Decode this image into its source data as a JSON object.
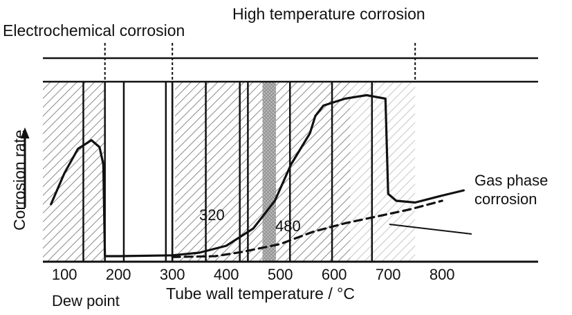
{
  "chart_data": {
    "type": "line",
    "title": "",
    "xlabel": "Tube wall temperature / °C",
    "ylabel": "Corrosion rate",
    "xlim": [
      60,
      840
    ],
    "ylim": [
      0,
      1
    ],
    "x_ticks": [
      100,
      200,
      300,
      400,
      500,
      600,
      700,
      800
    ],
    "x_tick_labels": [
      "100",
      "200",
      "300",
      "400",
      "500",
      "600",
      "700",
      "800"
    ],
    "regions": [
      {
        "label": "Electrochemical corrosion",
        "x_range": [
          60,
          175
        ]
      },
      {
        "label": "High temperature corrosion",
        "x_range": [
          345,
          750
        ]
      }
    ],
    "shaded_bands": [
      {
        "x_range": [
          60,
          175
        ],
        "pattern": "hatch"
      },
      {
        "x_range": [
          305,
          630
        ],
        "pattern": "hatch"
      },
      {
        "x_range": [
          467,
          492
        ],
        "pattern": "crosshatch"
      },
      {
        "x_range": [
          630,
          750
        ],
        "pattern": "hatch-light"
      }
    ],
    "vertical_lines": [
      135,
      210,
      288,
      300,
      362,
      425,
      440,
      518,
      596,
      670
    ],
    "dashed_verticals": [
      175,
      300,
      750
    ],
    "annotations": [
      {
        "text": "Dew point",
        "x": 175
      },
      {
        "text": "320",
        "x": 320
      },
      {
        "text": "480",
        "x": 480
      },
      {
        "text": "Gas phase corrosion",
        "x": 760
      }
    ],
    "series": [
      {
        "style": "solid",
        "points": [
          [
            75,
            0.32
          ],
          [
            100,
            0.5
          ],
          [
            125,
            0.64
          ],
          [
            150,
            0.69
          ],
          [
            165,
            0.65
          ],
          [
            172,
            0.55
          ],
          [
            175,
            0.02
          ],
          [
            200,
            0.02
          ],
          [
            300,
            0.025
          ],
          [
            350,
            0.04
          ],
          [
            400,
            0.08
          ],
          [
            450,
            0.18
          ],
          [
            490,
            0.34
          ],
          [
            520,
            0.55
          ],
          [
            555,
            0.73
          ],
          [
            565,
            0.83
          ],
          [
            580,
            0.89
          ],
          [
            620,
            0.93
          ],
          [
            660,
            0.95
          ],
          [
            695,
            0.93
          ],
          [
            700,
            0.38
          ],
          [
            715,
            0.34
          ],
          [
            750,
            0.33
          ],
          [
            800,
            0.37
          ],
          [
            840,
            0.4
          ]
        ]
      },
      {
        "style": "dashed",
        "points": [
          [
            300,
            0.015
          ],
          [
            380,
            0.02
          ],
          [
            430,
            0.045
          ],
          [
            500,
            0.09
          ],
          [
            560,
            0.16
          ],
          [
            620,
            0.21
          ],
          [
            680,
            0.25
          ],
          [
            740,
            0.29
          ],
          [
            800,
            0.34
          ]
        ]
      }
    ]
  }
}
